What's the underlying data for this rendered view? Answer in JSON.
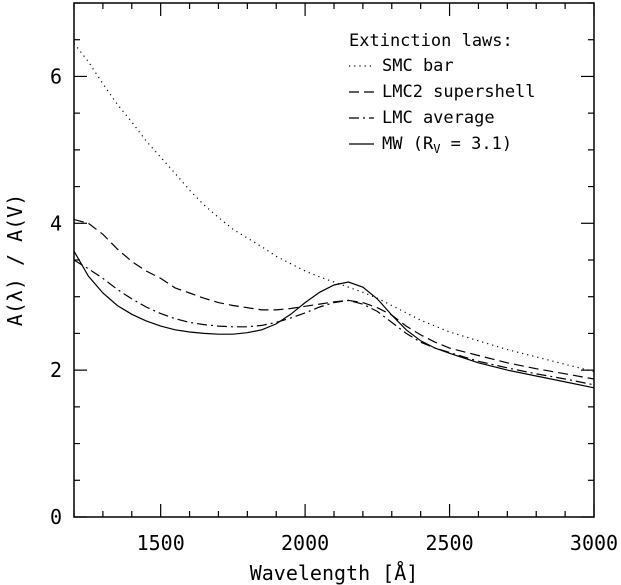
{
  "chart_data": {
    "type": "line",
    "title": "",
    "xlabel": "Wavelength [Å]",
    "ylabel": "A(λ) / A(V)",
    "xlim": [
      1200,
      3000
    ],
    "ylim": [
      0,
      7
    ],
    "xticks": [
      1500,
      2000,
      2500,
      3000
    ],
    "yticks": [
      0,
      2,
      4,
      6
    ],
    "grid": false,
    "legend": {
      "title": "Extinction laws:",
      "placement": "top-right"
    },
    "series": [
      {
        "name": "SMC bar",
        "style": "dotted",
        "x": [
          1200,
          1250,
          1300,
          1350,
          1400,
          1450,
          1500,
          1550,
          1600,
          1650,
          1700,
          1750,
          1800,
          1850,
          1900,
          1950,
          2000,
          2050,
          2100,
          2150,
          2200,
          2250,
          2300,
          2350,
          2400,
          2450,
          2500,
          2600,
          2700,
          2800,
          2900,
          3000
        ],
        "y": [
          6.45,
          6.2,
          5.9,
          5.62,
          5.38,
          5.12,
          4.9,
          4.68,
          4.45,
          4.25,
          4.08,
          3.92,
          3.8,
          3.68,
          3.55,
          3.45,
          3.35,
          3.27,
          3.2,
          3.13,
          3.06,
          2.98,
          2.88,
          2.78,
          2.68,
          2.6,
          2.52,
          2.4,
          2.28,
          2.18,
          2.08,
          1.98
        ]
      },
      {
        "name": "LMC2 supershell",
        "style": "dashed",
        "x": [
          1200,
          1250,
          1300,
          1350,
          1400,
          1450,
          1500,
          1550,
          1600,
          1650,
          1700,
          1750,
          1800,
          1850,
          1900,
          1950,
          2000,
          2050,
          2100,
          2150,
          2200,
          2250,
          2300,
          2350,
          2400,
          2450,
          2500,
          2600,
          2700,
          2800,
          2900,
          3000
        ],
        "y": [
          4.05,
          4.0,
          3.85,
          3.65,
          3.48,
          3.35,
          3.25,
          3.12,
          3.05,
          2.98,
          2.92,
          2.88,
          2.85,
          2.82,
          2.82,
          2.84,
          2.87,
          2.9,
          2.93,
          2.95,
          2.92,
          2.85,
          2.75,
          2.6,
          2.48,
          2.38,
          2.3,
          2.2,
          2.1,
          2.02,
          1.95,
          1.88
        ]
      },
      {
        "name": "LMC average",
        "style": "dash-dot",
        "x": [
          1200,
          1250,
          1300,
          1350,
          1400,
          1450,
          1500,
          1550,
          1600,
          1650,
          1700,
          1750,
          1800,
          1850,
          1900,
          1950,
          2000,
          2050,
          2100,
          2150,
          2200,
          2250,
          2300,
          2350,
          2400,
          2450,
          2500,
          2600,
          2700,
          2800,
          2900,
          3000
        ],
        "y": [
          3.5,
          3.38,
          3.25,
          3.1,
          2.97,
          2.86,
          2.77,
          2.7,
          2.65,
          2.62,
          2.6,
          2.59,
          2.59,
          2.61,
          2.65,
          2.71,
          2.78,
          2.86,
          2.92,
          2.95,
          2.9,
          2.8,
          2.65,
          2.5,
          2.38,
          2.3,
          2.24,
          2.12,
          2.03,
          1.95,
          1.88,
          1.8
        ]
      },
      {
        "name": "MW (R_V = 3.1)",
        "style": "solid",
        "x": [
          1200,
          1250,
          1300,
          1350,
          1400,
          1450,
          1500,
          1550,
          1600,
          1650,
          1700,
          1750,
          1800,
          1850,
          1900,
          1950,
          2000,
          2050,
          2100,
          2150,
          2200,
          2250,
          2300,
          2350,
          2400,
          2450,
          2500,
          2600,
          2700,
          2800,
          2900,
          3000
        ],
        "y": [
          3.62,
          3.28,
          3.05,
          2.88,
          2.76,
          2.67,
          2.6,
          2.55,
          2.52,
          2.5,
          2.49,
          2.49,
          2.51,
          2.55,
          2.63,
          2.76,
          2.92,
          3.06,
          3.16,
          3.2,
          3.13,
          2.97,
          2.75,
          2.55,
          2.4,
          2.3,
          2.23,
          2.1,
          2.0,
          1.92,
          1.84,
          1.76
        ]
      }
    ]
  }
}
